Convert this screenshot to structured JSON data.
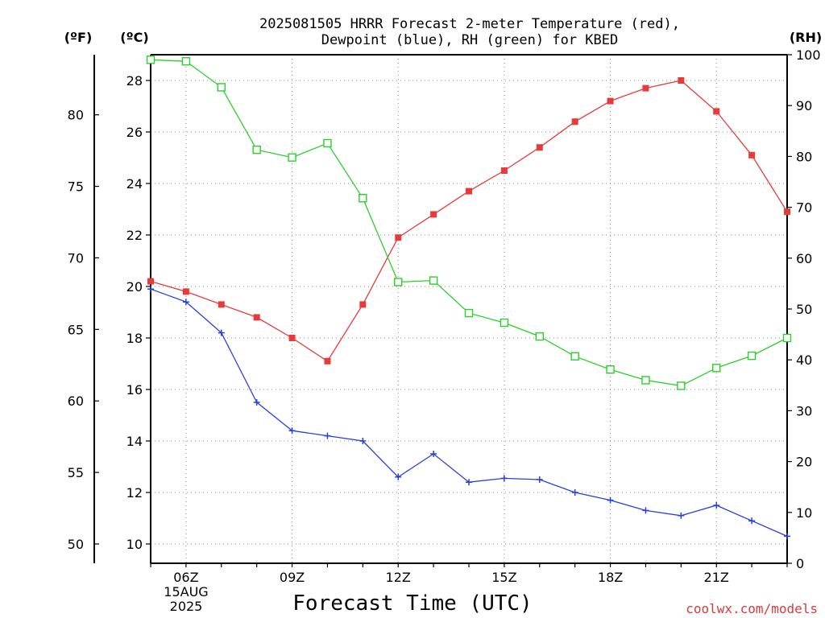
{
  "chart_data": {
    "type": "line",
    "title_lines": [
      "2025081505 HRRR Forecast 2-meter Temperature (red),",
      "Dewpoint (blue), RH (green) for KBED"
    ],
    "xlabel": "Forecast Time (UTC)",
    "credit": "coolwx.com/models",
    "axis_units": {
      "fahrenheit": "(ºF)",
      "celsius": "(ºC)",
      "rh": "(RH)"
    },
    "x": [
      "05Z",
      "06Z",
      "07Z",
      "08Z",
      "09Z",
      "10Z",
      "11Z",
      "12Z",
      "13Z",
      "14Z",
      "15Z",
      "16Z",
      "17Z",
      "18Z",
      "19Z",
      "20Z",
      "21Z",
      "22Z",
      "23Z"
    ],
    "x_tick_labels": [
      "06Z",
      "09Z",
      "12Z",
      "15Z",
      "18Z",
      "21Z"
    ],
    "x_date_label": [
      "15AUG",
      "2025"
    ],
    "celsius_ticks": [
      "10",
      "12",
      "14",
      "16",
      "18",
      "20",
      "22",
      "24",
      "26",
      "28"
    ],
    "fahrenheit_ticks": [
      "50",
      "55",
      "60",
      "65",
      "70",
      "75",
      "80"
    ],
    "rh_ticks": [
      "0",
      "10",
      "20",
      "30",
      "40",
      "50",
      "60",
      "70",
      "80",
      "90",
      "100"
    ],
    "ylim_celsius": [
      9.25,
      29.0
    ],
    "ylim_rh": [
      0,
      100
    ],
    "grid": true,
    "series": [
      {
        "name": "2-meter Temperature",
        "axis": "celsius",
        "color": "#e83a3a",
        "marker": "filled-square",
        "values": [
          20.2,
          19.8,
          19.3,
          18.8,
          18.0,
          17.1,
          19.3,
          21.9,
          22.8,
          23.7,
          24.5,
          25.4,
          26.4,
          27.2,
          27.7,
          28.0,
          26.8,
          25.1,
          22.9
        ]
      },
      {
        "name": "Dewpoint",
        "axis": "celsius",
        "color": "#2540e0",
        "marker": "plus",
        "values": [
          19.9,
          19.4,
          18.2,
          15.5,
          14.4,
          14.2,
          14.0,
          12.6,
          13.5,
          12.4,
          12.55,
          12.5,
          12.0,
          11.7,
          11.3,
          11.1,
          11.5,
          10.9,
          10.3
        ]
      },
      {
        "name": "RH",
        "axis": "rh",
        "color": "#2ad12a",
        "marker": "open-square",
        "values": [
          99,
          98.7,
          93.6,
          81.3,
          79.8,
          82.6,
          71.8,
          55.3,
          55.6,
          49.2,
          47.3,
          44.6,
          40.7,
          38.1,
          36.0,
          34.9,
          38.4,
          40.8,
          44.3
        ]
      }
    ]
  }
}
